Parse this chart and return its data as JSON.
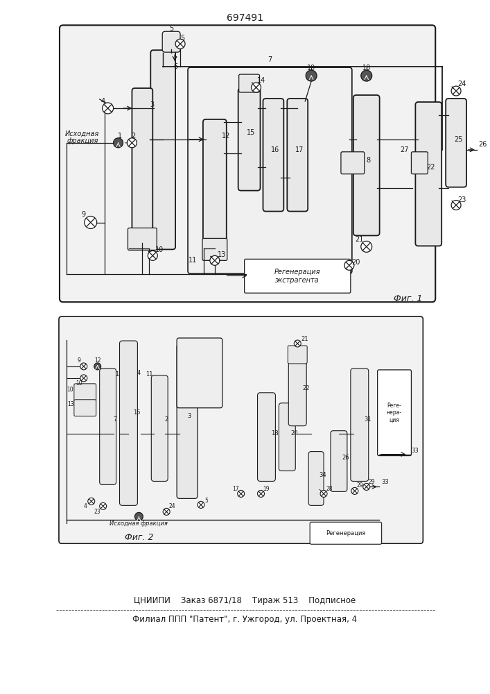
{
  "title": "697491",
  "fig1_label": "Фиг. 1",
  "fig2_label": "Фиг. 2",
  "footer_line1": "ЦНИИПИ    Заказ 6871/18    Тираж 513    Подписное",
  "footer_line2": "Филиал ППП \"Патент\", г. Ужгород, ул. Проектная, 4",
  "bg_color": "#ffffff",
  "diagram_color": "#1a1a1a",
  "col_fill": "#e8e8e8",
  "col_fill2": "#d0d0d0",
  "box_fill": "#f5f5f5",
  "regen_fill": "#ffffff"
}
